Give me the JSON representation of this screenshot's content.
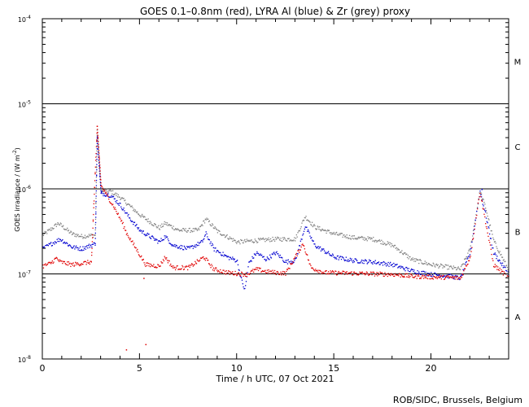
{
  "chart_data": {
    "type": "scatter",
    "title": "GOES 0.1–0.8nm (red), LYRA Al (blue) & Zr (grey) proxy",
    "xlabel": "Time / h UTC, 07 Oct 2021",
    "ylabel_main": "GOES irradiance / (W m",
    "ylabel_sup": "-2",
    "ylabel_close": ")",
    "xlim": [
      0,
      24
    ],
    "ylim_log10": [
      -8,
      -4
    ],
    "x_ticks": [
      {
        "value": 0,
        "label": "0"
      },
      {
        "value": 5,
        "label": "5"
      },
      {
        "value": 10,
        "label": "10"
      },
      {
        "value": 15,
        "label": "15"
      },
      {
        "value": 20,
        "label": "20"
      }
    ],
    "y_ticks": [
      {
        "exp": -8,
        "base": "10",
        "sup": "-8"
      },
      {
        "exp": -7,
        "base": "10",
        "sup": "-7"
      },
      {
        "exp": -6,
        "base": "10",
        "sup": "-6"
      },
      {
        "exp": -5,
        "base": "10",
        "sup": "-5"
      },
      {
        "exp": -4,
        "base": "10",
        "sup": "-4"
      }
    ],
    "class_lines_log10": [
      -7,
      -6,
      -5
    ],
    "flare_classes": [
      {
        "label": "A",
        "center_log10": -7.5
      },
      {
        "label": "B",
        "center_log10": -6.5
      },
      {
        "label": "C",
        "center_log10": -5.5
      },
      {
        "label": "M",
        "center_log10": -4.5
      }
    ],
    "series": [
      {
        "name": "GOES 0.1-0.8nm",
        "color": "#e00000",
        "points": [
          [
            0,
            1.25e-07
          ],
          [
            0.4,
            1.35e-07
          ],
          [
            0.7,
            1.55e-07
          ],
          [
            0.9,
            1.4e-07
          ],
          [
            1.5,
            1.3e-07
          ],
          [
            2.0,
            1.35e-07
          ],
          [
            2.5,
            1.4e-07
          ],
          [
            2.8,
            5.5e-06
          ],
          [
            3.0,
            1.1e-06
          ],
          [
            3.3,
            8.5e-07
          ],
          [
            3.7,
            6e-07
          ],
          [
            4.1,
            4e-07
          ],
          [
            4.3,
            3.1e-07
          ],
          [
            5.3,
            1.3e-07
          ],
          [
            6.0,
            1.25e-07
          ],
          [
            6.3,
            1.6e-07
          ],
          [
            6.7,
            1.2e-07
          ],
          [
            7.5,
            1.2e-07
          ],
          [
            8.3,
            1.6e-07
          ],
          [
            8.8,
            1.15e-07
          ],
          [
            9.5,
            1.05e-07
          ],
          [
            10.5,
            1e-07
          ],
          [
            11.0,
            1.15e-07
          ],
          [
            11.5,
            1.08e-07
          ],
          [
            12.0,
            1.05e-07
          ],
          [
            12.5,
            1.03e-07
          ],
          [
            13.4,
            2.3e-07
          ],
          [
            13.8,
            1.2e-07
          ],
          [
            14.5,
            1.05e-07
          ],
          [
            16.0,
            1.03e-07
          ],
          [
            18.0,
            1e-07
          ],
          [
            19.0,
            9.5e-08
          ],
          [
            20.0,
            9.3e-08
          ],
          [
            21.0,
            9.2e-08
          ],
          [
            21.5,
            9e-08
          ],
          [
            22.0,
            1.6e-07
          ],
          [
            22.5,
            9.5e-07
          ],
          [
            22.8,
            4e-07
          ],
          [
            23.2,
            1.3e-07
          ],
          [
            24,
            9e-08
          ]
        ],
        "scatter": [
          [
            4.3,
            1.3e-08
          ],
          [
            5.3,
            1.5e-08
          ],
          [
            5.2,
            9e-08
          ]
        ]
      },
      {
        "name": "LYRA Al proxy",
        "color": "#0000d0",
        "points": [
          [
            0,
            2e-07
          ],
          [
            0.6,
            2.4e-07
          ],
          [
            0.9,
            2.6e-07
          ],
          [
            1.5,
            2.1e-07
          ],
          [
            2.0,
            2e-07
          ],
          [
            2.7,
            2.3e-07
          ],
          [
            2.8,
            4e-06
          ],
          [
            3.0,
            9e-07
          ],
          [
            3.5,
            8.5e-07
          ],
          [
            4.0,
            6.5e-07
          ],
          [
            4.5,
            4.5e-07
          ],
          [
            5.0,
            3.3e-07
          ],
          [
            5.5,
            2.8e-07
          ],
          [
            6.0,
            2.4e-07
          ],
          [
            6.3,
            2.8e-07
          ],
          [
            6.7,
            2.2e-07
          ],
          [
            7.5,
            2e-07
          ],
          [
            8.2,
            2.4e-07
          ],
          [
            8.4,
            3e-07
          ],
          [
            8.8,
            2e-07
          ],
          [
            9.5,
            1.6e-07
          ],
          [
            10.0,
            1.45e-07
          ],
          [
            10.2,
            9e-08
          ],
          [
            10.4,
            6.5e-08
          ],
          [
            10.6,
            1.35e-07
          ],
          [
            11.0,
            1.8e-07
          ],
          [
            11.5,
            1.5e-07
          ],
          [
            12.0,
            1.8e-07
          ],
          [
            12.5,
            1.4e-07
          ],
          [
            13.0,
            1.45e-07
          ],
          [
            13.5,
            3.7e-07
          ],
          [
            14.0,
            2.2e-07
          ],
          [
            15.0,
            1.6e-07
          ],
          [
            16.0,
            1.45e-07
          ],
          [
            17.0,
            1.4e-07
          ],
          [
            18.0,
            1.3e-07
          ],
          [
            19.0,
            1.1e-07
          ],
          [
            20.0,
            1e-07
          ],
          [
            21.0,
            9.5e-08
          ],
          [
            21.5,
            9e-08
          ],
          [
            22.0,
            1.8e-07
          ],
          [
            22.5,
            9.5e-07
          ],
          [
            22.8,
            5e-07
          ],
          [
            23.2,
            1.8e-07
          ],
          [
            24,
            1e-07
          ]
        ],
        "scatter": [
          [
            22.6,
            1e-06
          ]
        ]
      },
      {
        "name": "LYRA Zr proxy",
        "color": "#808080",
        "points": [
          [
            0,
            2.9e-07
          ],
          [
            0.5,
            3.5e-07
          ],
          [
            0.8,
            4e-07
          ],
          [
            1.5,
            3e-07
          ],
          [
            2.0,
            2.8e-07
          ],
          [
            2.7,
            2.9e-07
          ],
          [
            2.8,
            5e-06
          ],
          [
            3.0,
            9.5e-07
          ],
          [
            3.5,
            9.5e-07
          ],
          [
            4.0,
            8e-07
          ],
          [
            5.0,
            5e-07
          ],
          [
            6.0,
            3.5e-07
          ],
          [
            6.3,
            4e-07
          ],
          [
            7.0,
            3.3e-07
          ],
          [
            8.0,
            3.3e-07
          ],
          [
            8.4,
            4.5e-07
          ],
          [
            9.0,
            3.2e-07
          ],
          [
            10.0,
            2.4e-07
          ],
          [
            11.0,
            2.5e-07
          ],
          [
            12.0,
            2.6e-07
          ],
          [
            13.0,
            2.6e-07
          ],
          [
            13.5,
            4.8e-07
          ],
          [
            14.0,
            3.6e-07
          ],
          [
            15.0,
            3e-07
          ],
          [
            16.0,
            2.7e-07
          ],
          [
            17.0,
            2.6e-07
          ],
          [
            18.0,
            2.2e-07
          ],
          [
            19.0,
            1.5e-07
          ],
          [
            20.0,
            1.3e-07
          ],
          [
            21.0,
            1.2e-07
          ],
          [
            21.5,
            1.15e-07
          ],
          [
            22.0,
            2e-07
          ],
          [
            22.5,
            9.5e-07
          ],
          [
            22.8,
            6e-07
          ],
          [
            23.2,
            2.5e-07
          ],
          [
            24,
            1.1e-07
          ]
        ],
        "scatter": []
      }
    ]
  },
  "footer": {
    "credit": "ROB/SIDC, Brussels, Belgium"
  }
}
